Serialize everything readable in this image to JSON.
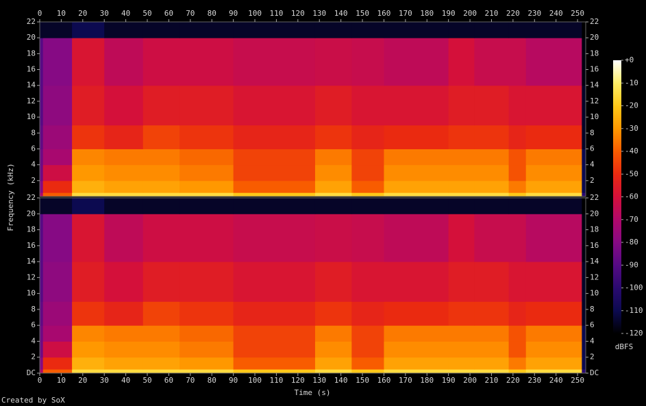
{
  "chart_data": {
    "type": "heatmap",
    "xlabel": "Time (s)",
    "ylabel": "Frequency (kHz)",
    "footer": "Created by SoX",
    "xlim": [
      0,
      253.8
    ],
    "xticks": [
      0,
      10,
      20,
      30,
      40,
      50,
      60,
      70,
      80,
      90,
      100,
      110,
      120,
      130,
      140,
      150,
      160,
      170,
      180,
      190,
      200,
      210,
      220,
      230,
      240,
      250
    ],
    "x_edges": [
      0,
      1.5,
      15,
      30,
      48,
      65,
      90,
      128,
      145,
      160,
      190,
      202,
      218,
      226,
      252,
      253.8
    ],
    "y_edges": [
      0,
      0.5,
      2,
      4,
      6,
      9,
      14,
      20,
      22
    ],
    "panels": [
      {
        "ylim": [
          0,
          22
        ],
        "yticks": [
          2,
          4,
          6,
          8,
          10,
          12,
          14,
          16,
          18,
          20,
          22
        ],
        "values": [
          [
            -70,
            -40,
            -15,
            -15,
            -15,
            -15,
            -20,
            -15,
            -20,
            -15,
            -15,
            -15,
            -20,
            -15,
            -100
          ],
          [
            -80,
            -50,
            -25,
            -28,
            -28,
            -30,
            -40,
            -28,
            -40,
            -28,
            -28,
            -28,
            -35,
            -28,
            -110
          ],
          [
            -85,
            -62,
            -30,
            -32,
            -32,
            -35,
            -45,
            -32,
            -45,
            -32,
            -32,
            -32,
            -42,
            -32,
            -110
          ],
          [
            -85,
            -72,
            -33,
            -35,
            -35,
            -38,
            -45,
            -35,
            -45,
            -35,
            -35,
            -35,
            -42,
            -35,
            -110
          ],
          [
            -88,
            -75,
            -48,
            -52,
            -45,
            -48,
            -52,
            -48,
            -52,
            -50,
            -48,
            -48,
            -52,
            -50,
            -115
          ],
          [
            -90,
            -78,
            -55,
            -60,
            -55,
            -55,
            -58,
            -55,
            -58,
            -58,
            -55,
            -55,
            -58,
            -58,
            -115
          ],
          [
            -90,
            -80,
            -58,
            -66,
            -62,
            -62,
            -64,
            -63,
            -64,
            -66,
            -60,
            -64,
            -64,
            -68,
            -118
          ],
          [
            -115,
            -115,
            -110,
            -115,
            -115,
            -115,
            -115,
            -115,
            -115,
            -115,
            -115,
            -115,
            -115,
            -115,
            -120
          ]
        ]
      },
      {
        "ylim": [
          0,
          22
        ],
        "yticks": [
          {
            "value": 0,
            "label": "DC"
          },
          2,
          4,
          6,
          8,
          10,
          12,
          14,
          16,
          18,
          20,
          22
        ],
        "values": [
          [
            -70,
            -40,
            -15,
            -15,
            -15,
            -15,
            -20,
            -15,
            -20,
            -15,
            -15,
            -15,
            -20,
            -15,
            -100
          ],
          [
            -80,
            -50,
            -25,
            -28,
            -28,
            -30,
            -40,
            -28,
            -40,
            -28,
            -28,
            -28,
            -35,
            -28,
            -110
          ],
          [
            -85,
            -62,
            -30,
            -32,
            -32,
            -35,
            -45,
            -32,
            -45,
            -32,
            -32,
            -32,
            -42,
            -32,
            -110
          ],
          [
            -85,
            -72,
            -33,
            -35,
            -35,
            -38,
            -45,
            -35,
            -45,
            -35,
            -35,
            -35,
            -42,
            -35,
            -110
          ],
          [
            -88,
            -75,
            -48,
            -52,
            -45,
            -48,
            -52,
            -48,
            -52,
            -50,
            -48,
            -48,
            -52,
            -50,
            -115
          ],
          [
            -90,
            -78,
            -55,
            -60,
            -55,
            -55,
            -58,
            -55,
            -58,
            -58,
            -55,
            -55,
            -58,
            -58,
            -115
          ],
          [
            -90,
            -80,
            -58,
            -66,
            -62,
            -62,
            -64,
            -63,
            -64,
            -66,
            -60,
            -64,
            -64,
            -68,
            -118
          ],
          [
            -115,
            -115,
            -110,
            -115,
            -115,
            -115,
            -115,
            -115,
            -115,
            -115,
            -115,
            -115,
            -115,
            -115,
            -120
          ]
        ]
      }
    ],
    "colorbar": {
      "label": "dBFS",
      "lim": [
        -120,
        0
      ],
      "ticks": [
        {
          "value": 0,
          "label": "+0"
        },
        -10,
        -20,
        -30,
        -40,
        -50,
        -60,
        -70,
        -80,
        -90,
        -100,
        -110,
        -120
      ],
      "stops": [
        -120,
        -110,
        -100,
        -90,
        -80,
        -70,
        -60,
        -50,
        -40,
        -30,
        -20,
        -10,
        0
      ],
      "colors": [
        "#000000",
        "#0c0a50",
        "#2a0a70",
        "#560a84",
        "#860a84",
        "#b0086a",
        "#d4103a",
        "#ea2a10",
        "#f85c00",
        "#ff9800",
        "#ffc818",
        "#ffee66",
        "#ffffff"
      ]
    }
  }
}
